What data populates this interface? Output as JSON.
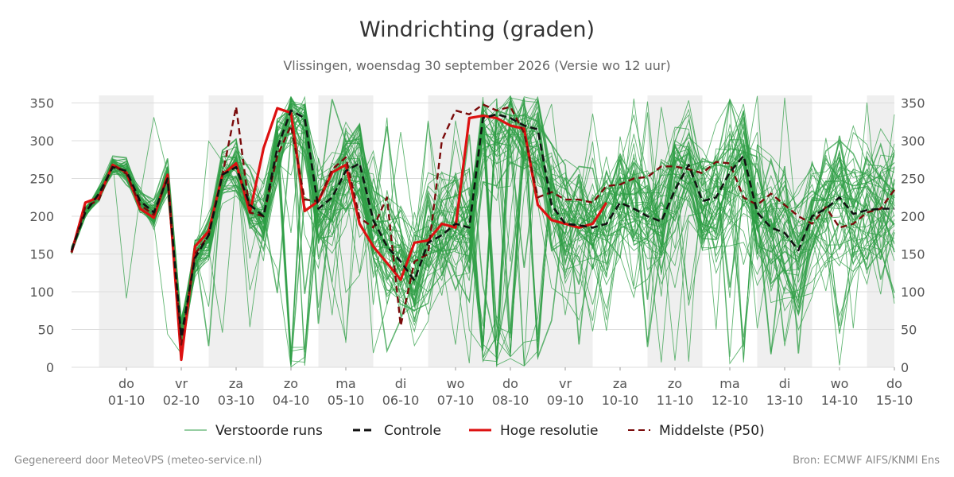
{
  "chart_data": {
    "type": "line",
    "title": "Windrichting (graden)",
    "subtitle": "Vlissingen, woensdag 30 september 2026 (Versie wo 12 uur)",
    "ylim": [
      0,
      360
    ],
    "yticks": [
      0,
      50,
      100,
      150,
      200,
      250,
      300,
      350
    ],
    "x_start": "2026-09-30T12:00",
    "x_end": "2026-10-15T12:00",
    "x_step_hours": 6,
    "x_ticks": [
      {
        "day": "do",
        "date": "01-10"
      },
      {
        "day": "vr",
        "date": "02-10"
      },
      {
        "day": "za",
        "date": "03-10"
      },
      {
        "day": "zo",
        "date": "04-10"
      },
      {
        "day": "ma",
        "date": "05-10"
      },
      {
        "day": "di",
        "date": "06-10"
      },
      {
        "day": "wo",
        "date": "07-10"
      },
      {
        "day": "do",
        "date": "08-10"
      },
      {
        "day": "vr",
        "date": "09-10"
      },
      {
        "day": "za",
        "date": "10-10"
      },
      {
        "day": "zo",
        "date": "11-10"
      },
      {
        "day": "ma",
        "date": "12-10"
      },
      {
        "day": "di",
        "date": "13-10"
      },
      {
        "day": "wo",
        "date": "14-10"
      },
      {
        "day": "do",
        "date": "15-10"
      }
    ],
    "shaded_days": [
      "01-10",
      "03-10",
      "05-10",
      "07-10",
      "08-10",
      "09-10",
      "11-10",
      "13-10",
      "15-10"
    ],
    "grid": true,
    "legend_position": "bottom",
    "series": [
      {
        "name": "Controle",
        "color": "#111111",
        "style": "dashed",
        "values": [
          155,
          205,
          230,
          265,
          260,
          220,
          205,
          250,
          40,
          145,
          175,
          255,
          265,
          215,
          200,
          290,
          340,
          330,
          210,
          225,
          260,
          270,
          195,
          160,
          140,
          115,
          165,
          175,
          190,
          185,
          330,
          335,
          330,
          320,
          315,
          215,
          190,
          188,
          185,
          190,
          218,
          210,
          200,
          193,
          235,
          268,
          220,
          225,
          258,
          280,
          205,
          185,
          178,
          155,
          200,
          210,
          225,
          203,
          208,
          210,
          210
        ]
      },
      {
        "name": "Hoge resolutie",
        "color": "#dd1111",
        "style": "solid",
        "values": [
          152,
          218,
          225,
          268,
          258,
          210,
          198,
          255,
          10,
          160,
          180,
          255,
          270,
          205,
          290,
          343,
          337,
          207,
          220,
          258,
          268,
          190,
          160,
          138,
          116,
          165,
          168,
          190,
          185,
          330,
          333,
          330,
          320,
          316,
          215,
          195,
          190,
          185,
          190,
          218
        ]
      },
      {
        "name": "Middelste (P50)",
        "color": "#7a0a0a",
        "style": "dashed",
        "values": [
          152,
          212,
          222,
          268,
          256,
          215,
          202,
          250,
          30,
          150,
          175,
          255,
          345,
          205,
          200,
          280,
          320,
          222,
          220,
          262,
          278,
          198,
          185,
          225,
          55,
          140,
          150,
          300,
          340,
          335,
          348,
          340,
          345,
          310,
          225,
          232,
          222,
          222,
          218,
          240,
          242,
          250,
          252,
          266,
          266,
          262,
          257,
          272,
          270,
          225,
          215,
          230,
          215,
          200,
          190,
          212,
          185,
          190,
          205,
          210,
          235
        ]
      }
    ],
    "ensemble": {
      "name": "Verstoorde runs",
      "color": "#2e9e44",
      "members": 50
    }
  },
  "legend": {
    "ensemble": "Verstoorde runs",
    "control": "Controle",
    "hires": "Hoge resolutie",
    "median": "Middelste (P50)"
  },
  "footer": {
    "left": "Gegenereerd door MeteoVPS (meteo-service.nl)",
    "right": "Bron: ECMWF AIFS/KNMI Ens"
  }
}
